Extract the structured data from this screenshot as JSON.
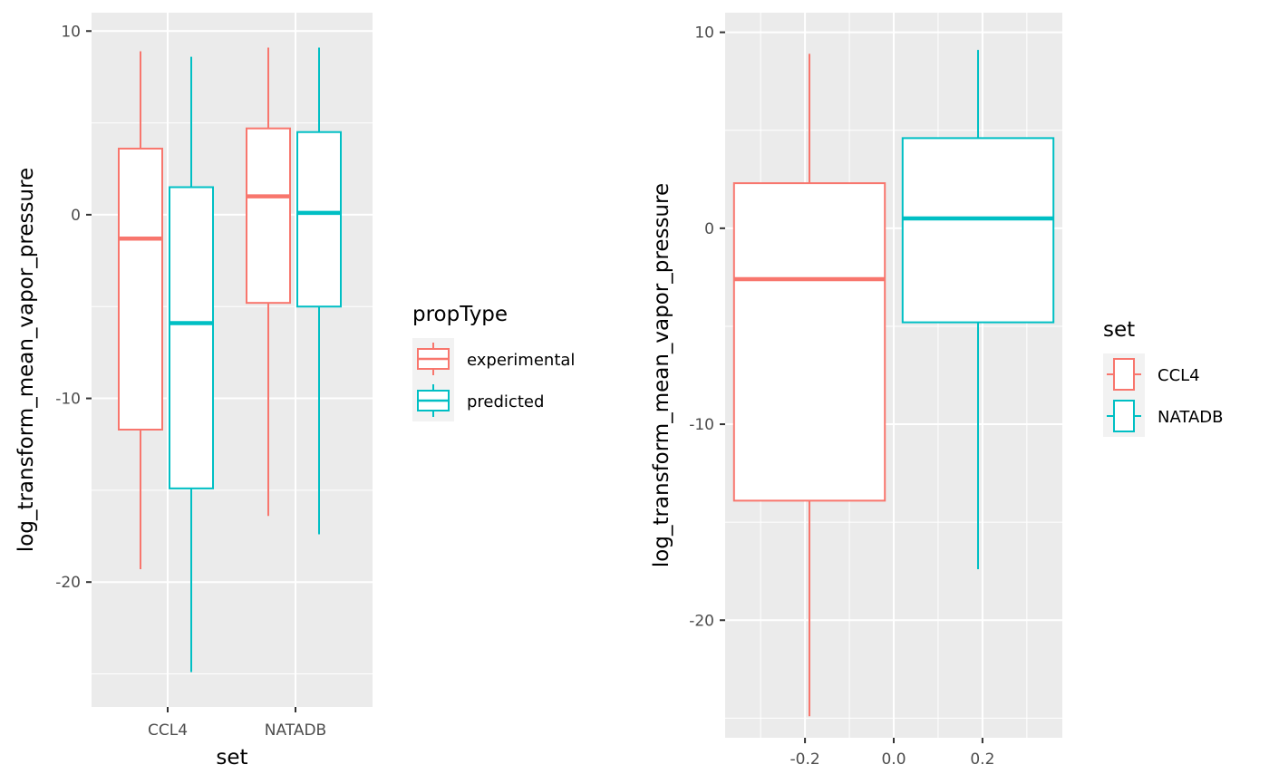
{
  "chart_data": [
    {
      "type": "boxplot",
      "xlabel": "set",
      "ylabel": "log_transform_mean_vapor_pressure",
      "ylim": [
        -26.8,
        11.0
      ],
      "yticks": [
        10,
        0,
        -10,
        -20
      ],
      "ytick_labels": [
        "10",
        "0",
        "-10",
        "-20"
      ],
      "categories": [
        "CCL4",
        "NATADB"
      ],
      "legend": {
        "title": "propType",
        "position": "right"
      },
      "series": [
        {
          "name": "experimental",
          "color": "#F8766D",
          "boxes": [
            {
              "category": "CCL4",
              "min": -19.3,
              "q1": -11.7,
              "median": -1.3,
              "q3": 3.6,
              "max": 8.9
            },
            {
              "category": "NATADB",
              "min": -16.4,
              "q1": -4.8,
              "median": 1.0,
              "q3": 4.7,
              "max": 9.1
            }
          ]
        },
        {
          "name": "predicted",
          "color": "#00BFC4",
          "boxes": [
            {
              "category": "CCL4",
              "min": -24.9,
              "q1": -14.9,
              "median": -5.9,
              "q3": 1.5,
              "max": 8.6
            },
            {
              "category": "NATADB",
              "min": -17.4,
              "q1": -5.0,
              "median": 0.1,
              "q3": 4.5,
              "max": 9.1
            }
          ]
        }
      ],
      "grid": true,
      "background": "#EBEBEB"
    },
    {
      "type": "boxplot",
      "xlabel": "",
      "ylabel": "log_transform_mean_vapor_pressure",
      "xlim": [
        -0.38,
        0.38
      ],
      "ylim": [
        -26.0,
        11.0
      ],
      "xticks": [
        -0.2,
        0.0,
        0.2
      ],
      "xtick_labels": [
        "-0.2",
        "0.0",
        "0.2"
      ],
      "yticks": [
        10,
        0,
        -10,
        -20
      ],
      "ytick_labels": [
        "10",
        "0",
        "-10",
        "-20"
      ],
      "legend": {
        "title": "set",
        "position": "right"
      },
      "series": [
        {
          "name": "CCL4",
          "color": "#F8766D",
          "x_range": [
            -0.36,
            -0.02
          ],
          "x_center": -0.19,
          "min": -24.9,
          "q1": -13.9,
          "median": -2.6,
          "q3": 2.3,
          "max": 8.9
        },
        {
          "name": "NATADB",
          "color": "#00BFC4",
          "x_range": [
            0.02,
            0.36
          ],
          "x_center": 0.19,
          "min": -17.4,
          "q1": -4.8,
          "median": 0.5,
          "q3": 4.6,
          "max": 9.1
        }
      ],
      "grid": true,
      "background": "#EBEBEB"
    }
  ]
}
